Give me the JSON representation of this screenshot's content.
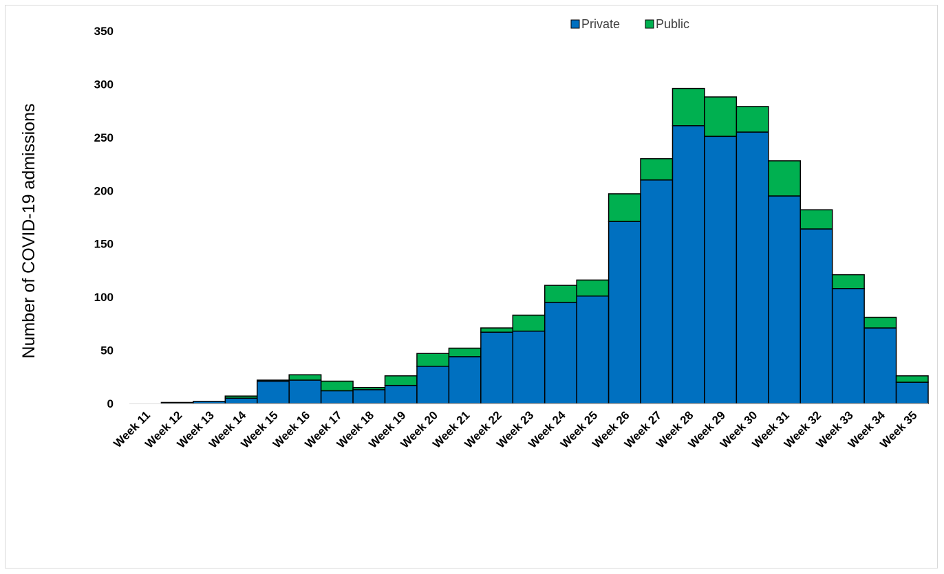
{
  "chart_data": {
    "type": "bar",
    "stacked": true,
    "categories": [
      "Week 11",
      "Week 12",
      "Week 13",
      "Week 14",
      "Week 15",
      "Week 16",
      "Week 17",
      "Week 18",
      "Week 19",
      "Week 20",
      "Week 21",
      "Week 22",
      "Week 23",
      "Week 24",
      "Week 25",
      "Week 26",
      "Week 27",
      "Week 28",
      "Week 29",
      "Week 30",
      "Week 31",
      "Week 32",
      "Week 33",
      "Week 34",
      "Week 35"
    ],
    "series": [
      {
        "name": "Private",
        "color": "#0070c0",
        "values": [
          0,
          1,
          2,
          5,
          21,
          22,
          12,
          13,
          17,
          35,
          44,
          67,
          68,
          95,
          101,
          171,
          210,
          261,
          251,
          255,
          195,
          164,
          108,
          71,
          20
        ]
      },
      {
        "name": "Public",
        "color": "#00b050",
        "values": [
          0,
          0,
          0,
          2,
          1,
          5,
          9,
          2,
          9,
          12,
          8,
          4,
          15,
          16,
          15,
          26,
          20,
          35,
          37,
          24,
          33,
          18,
          13,
          10,
          6
        ]
      }
    ],
    "ylabel": "Number of COVID-19 admissions",
    "xlabel": "",
    "ylim": [
      0,
      350
    ],
    "yticks": [
      0,
      50,
      100,
      150,
      200,
      250,
      300,
      350
    ],
    "grid": false,
    "legend_position": "top-right"
  }
}
